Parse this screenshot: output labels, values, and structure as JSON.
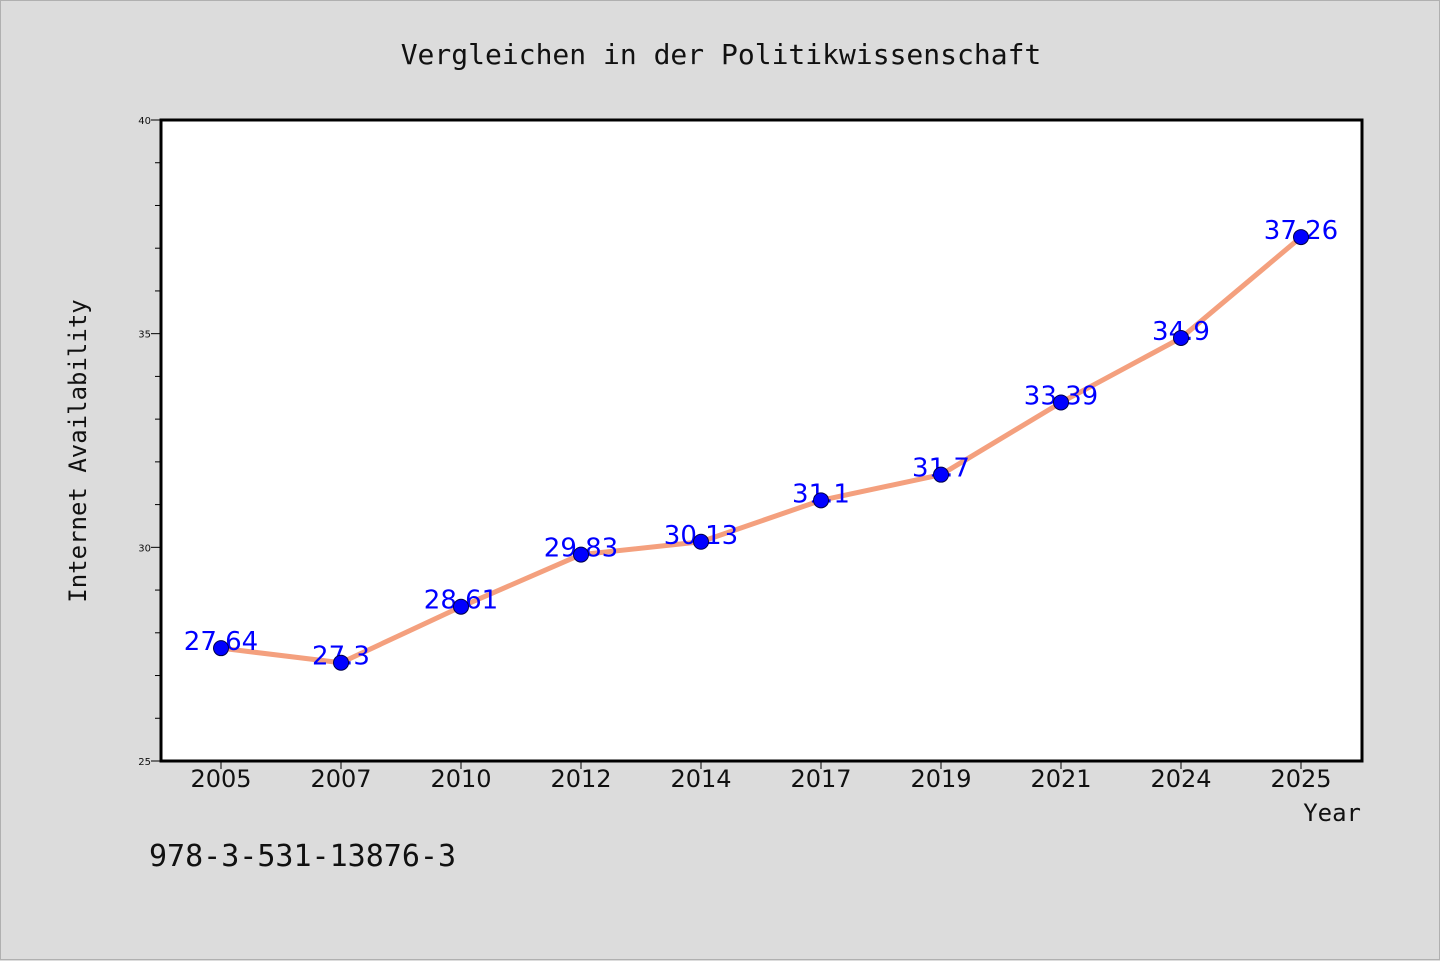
{
  "colors": {
    "background": "#dcdcdc",
    "plot_background": "#ffffff",
    "line": "#f4a07e",
    "marker": "#0000ff",
    "label": "#0000ff"
  },
  "chart_data": {
    "type": "line",
    "title": "Vergleichen in der Politikwissenschaft",
    "xlabel": "Year",
    "ylabel": "Internet Availability",
    "categories": [
      "2005",
      "2007",
      "2010",
      "2012",
      "2014",
      "2017",
      "2019",
      "2021",
      "2024",
      "2025"
    ],
    "series": [
      {
        "values": [
          27.64,
          27.3,
          28.61,
          29.83,
          30.13,
          31.1,
          31.7,
          33.39,
          34.9,
          37.26
        ],
        "labels": [
          "27.64",
          "27.3",
          "28.61",
          "29.83",
          "30.13",
          "31.1",
          "31.7",
          "33.39",
          "34.9",
          "37.26"
        ]
      }
    ],
    "ylim": [
      25,
      40
    ],
    "yticks": [
      "25",
      "30",
      "35",
      "40"
    ],
    "grid": false,
    "legend": "none"
  },
  "footer": {
    "isbn": "978-3-531-13876-3"
  }
}
